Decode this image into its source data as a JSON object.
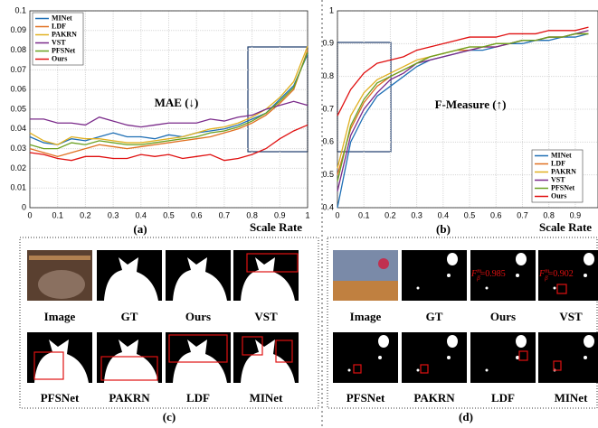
{
  "chart_data": [
    {
      "type": "line",
      "annotation": "MAE (↓)",
      "xlabel": "Scale Rate",
      "caption": "(a)",
      "x": [
        0,
        0.05,
        0.1,
        0.15,
        0.2,
        0.25,
        0.3,
        0.35,
        0.4,
        0.45,
        0.5,
        0.55,
        0.6,
        0.65,
        0.7,
        0.75,
        0.8,
        0.85,
        0.9,
        0.95,
        1
      ],
      "series": [
        {
          "name": "MINet",
          "color": "#1f6fb5",
          "values": [
            0.036,
            0.033,
            0.032,
            0.035,
            0.034,
            0.036,
            0.038,
            0.036,
            0.036,
            0.035,
            0.037,
            0.036,
            0.038,
            0.039,
            0.04,
            0.042,
            0.045,
            0.048,
            0.055,
            0.062,
            0.078
          ]
        },
        {
          "name": "LDF",
          "color": "#e07020",
          "values": [
            0.03,
            0.028,
            0.026,
            0.028,
            0.03,
            0.032,
            0.031,
            0.03,
            0.031,
            0.032,
            0.033,
            0.034,
            0.035,
            0.036,
            0.038,
            0.04,
            0.043,
            0.047,
            0.053,
            0.06,
            0.08
          ]
        },
        {
          "name": "PAKRN",
          "color": "#e0b020",
          "values": [
            0.038,
            0.034,
            0.032,
            0.036,
            0.035,
            0.035,
            0.034,
            0.033,
            0.033,
            0.034,
            0.035,
            0.036,
            0.038,
            0.04,
            0.041,
            0.043,
            0.046,
            0.05,
            0.056,
            0.064,
            0.082
          ]
        },
        {
          "name": "VST",
          "color": "#7a2a8a",
          "values": [
            0.045,
            0.045,
            0.043,
            0.043,
            0.042,
            0.046,
            0.044,
            0.042,
            0.041,
            0.042,
            0.043,
            0.043,
            0.043,
            0.045,
            0.044,
            0.046,
            0.047,
            0.05,
            0.052,
            0.054,
            0.052
          ]
        },
        {
          "name": "PFSNet",
          "color": "#6aa020",
          "values": [
            0.032,
            0.03,
            0.03,
            0.033,
            0.032,
            0.034,
            0.033,
            0.032,
            0.032,
            0.033,
            0.034,
            0.035,
            0.036,
            0.038,
            0.039,
            0.041,
            0.044,
            0.048,
            0.054,
            0.061,
            0.079
          ]
        },
        {
          "name": "Ours",
          "color": "#e01010",
          "values": [
            0.028,
            0.027,
            0.025,
            0.024,
            0.026,
            0.026,
            0.025,
            0.025,
            0.027,
            0.026,
            0.027,
            0.025,
            0.026,
            0.027,
            0.024,
            0.025,
            0.027,
            0.03,
            0.035,
            0.039,
            0.042
          ]
        }
      ],
      "xlim": [
        0,
        1
      ],
      "ylim": [
        0,
        0.1
      ],
      "xticks": [
        0,
        0.1,
        0.2,
        0.3,
        0.4,
        0.5,
        0.6,
        0.7,
        0.8,
        0.9,
        1
      ],
      "yticks": [
        0,
        0.01,
        0.02,
        0.03,
        0.04,
        0.05,
        0.06,
        0.07,
        0.08,
        0.09,
        0.1
      ],
      "grid": true,
      "legend": "upper left"
    },
    {
      "type": "line",
      "annotation": "F-Measure (↑)",
      "xlabel": "Scale Rate",
      "caption": "(b)",
      "x": [
        0,
        0.05,
        0.1,
        0.15,
        0.2,
        0.25,
        0.3,
        0.35,
        0.4,
        0.45,
        0.5,
        0.55,
        0.6,
        0.65,
        0.7,
        0.75,
        0.8,
        0.85,
        0.9,
        0.95
      ],
      "series": [
        {
          "name": "MINet",
          "color": "#1f6fb5",
          "values": [
            0.4,
            0.6,
            0.68,
            0.74,
            0.77,
            0.8,
            0.83,
            0.85,
            0.86,
            0.87,
            0.88,
            0.88,
            0.89,
            0.9,
            0.9,
            0.91,
            0.91,
            0.92,
            0.92,
            0.93
          ]
        },
        {
          "name": "LDF",
          "color": "#e07020",
          "values": [
            0.5,
            0.64,
            0.72,
            0.77,
            0.8,
            0.82,
            0.84,
            0.86,
            0.87,
            0.88,
            0.88,
            0.89,
            0.89,
            0.9,
            0.91,
            0.91,
            0.92,
            0.92,
            0.93,
            0.93
          ]
        },
        {
          "name": "PAKRN",
          "color": "#e0b020",
          "values": [
            0.52,
            0.68,
            0.75,
            0.79,
            0.81,
            0.83,
            0.85,
            0.86,
            0.87,
            0.88,
            0.89,
            0.89,
            0.9,
            0.9,
            0.91,
            0.91,
            0.92,
            0.92,
            0.93,
            0.93
          ]
        },
        {
          "name": "VST",
          "color": "#7a2a8a",
          "values": [
            0.45,
            0.62,
            0.7,
            0.75,
            0.79,
            0.81,
            0.84,
            0.85,
            0.86,
            0.87,
            0.88,
            0.89,
            0.89,
            0.9,
            0.91,
            0.91,
            0.92,
            0.92,
            0.93,
            0.94
          ]
        },
        {
          "name": "PFSNet",
          "color": "#6aa020",
          "values": [
            0.48,
            0.65,
            0.73,
            0.78,
            0.8,
            0.82,
            0.84,
            0.86,
            0.87,
            0.88,
            0.89,
            0.89,
            0.9,
            0.9,
            0.91,
            0.91,
            0.92,
            0.92,
            0.93,
            0.93
          ]
        },
        {
          "name": "Ours",
          "color": "#e01010",
          "values": [
            0.68,
            0.76,
            0.81,
            0.84,
            0.85,
            0.86,
            0.88,
            0.89,
            0.9,
            0.91,
            0.92,
            0.92,
            0.92,
            0.93,
            0.93,
            0.93,
            0.94,
            0.94,
            0.94,
            0.95
          ]
        }
      ],
      "xlim": [
        0,
        0.986
      ],
      "ylim": [
        0.4,
        1
      ],
      "xticks": [
        0,
        0.1,
        0.2,
        0.3,
        0.4,
        0.5,
        0.6,
        0.7,
        0.8,
        0.9
      ],
      "yticks": [
        0.4,
        0.5,
        0.6,
        0.7,
        0.8,
        0.9,
        1
      ],
      "grid": true,
      "legend": "lower right"
    }
  ],
  "panels": {
    "c": {
      "labels": [
        "Image",
        "GT",
        "Ours",
        "VST",
        "PFSNet",
        "PAKRN",
        "LDF",
        "MINet"
      ],
      "caption": "(c)"
    },
    "d": {
      "labels": [
        "Image",
        "GT",
        "Ours",
        "VST",
        "PFSNet",
        "PAKRN",
        "LDF",
        "MINet"
      ],
      "caption": "(d)",
      "scores": [
        {
          "symbol": "F",
          "sub": "β",
          "sup": "m",
          "value": "=0.985"
        },
        {
          "symbol": "F",
          "sub": "β",
          "sup": "m",
          "value": "=0.902"
        }
      ]
    }
  }
}
